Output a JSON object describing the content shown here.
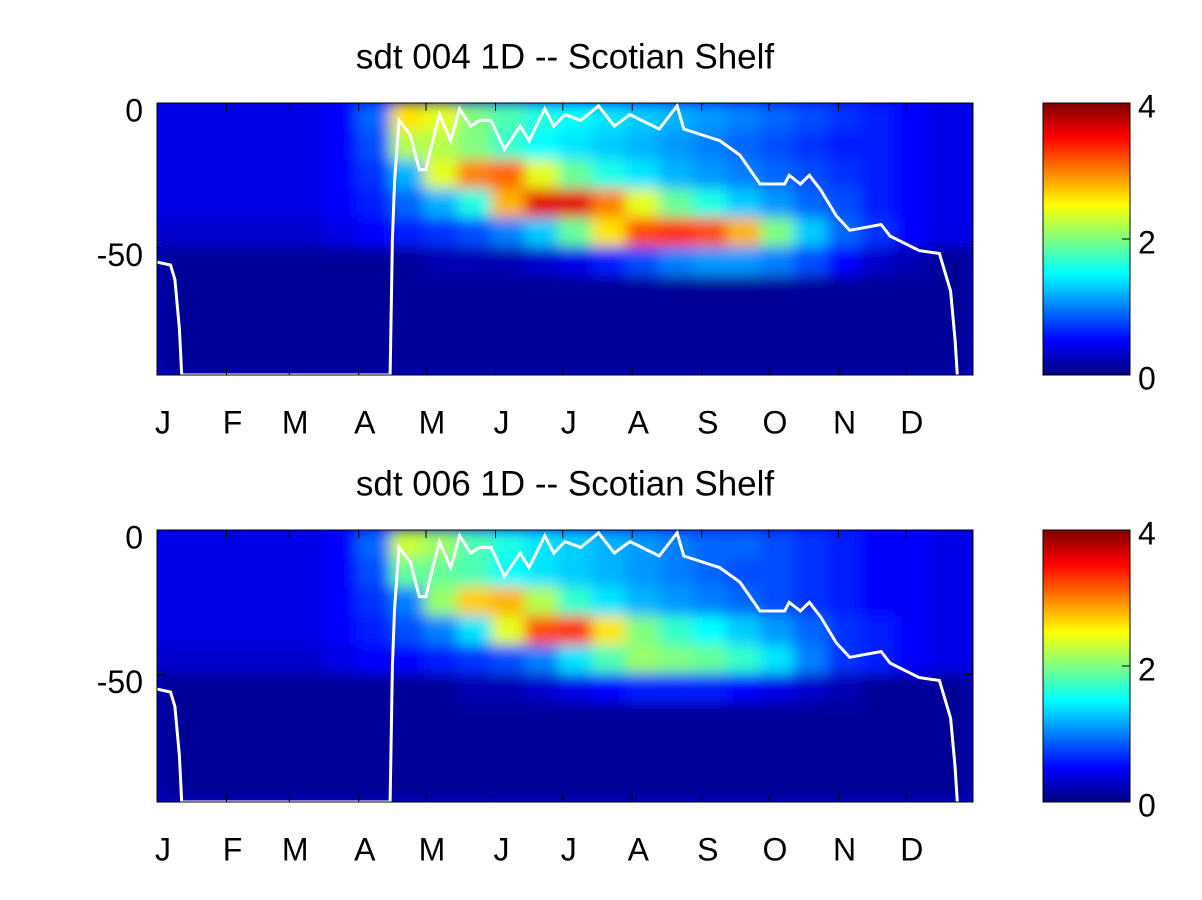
{
  "chart_data": [
    {
      "type": "heatmap",
      "title": "sdt  004 1D   -- Scotian Shelf",
      "colormap": "jet",
      "xlim": [
        1,
        365
      ],
      "ylim": [
        -94,
        0
      ],
      "xticks": [
        {
          "value": 1,
          "label": "J"
        },
        {
          "value": 32,
          "label": "F"
        },
        {
          "value": 60,
          "label": "M"
        },
        {
          "value": 91,
          "label": "A"
        },
        {
          "value": 121,
          "label": "M"
        },
        {
          "value": 152,
          "label": "J"
        },
        {
          "value": 182,
          "label": "J"
        },
        {
          "value": 213,
          "label": "A"
        },
        {
          "value": 244,
          "label": "S"
        },
        {
          "value": 274,
          "label": "O"
        },
        {
          "value": 305,
          "label": "N"
        },
        {
          "value": 335,
          "label": "D"
        }
      ],
      "yticks": [
        0,
        -50
      ],
      "clim": [
        0,
        4
      ],
      "cticks": [
        0,
        2,
        4
      ],
      "x": [
        8,
        23,
        38,
        53,
        68,
        83,
        98,
        113,
        128,
        143,
        158,
        173,
        188,
        203,
        218,
        233,
        248,
        263,
        278,
        293,
        308,
        323,
        338,
        353
      ],
      "y": [
        -5,
        -15,
        -25,
        -35,
        -45,
        -55,
        -65,
        -75,
        -85
      ],
      "z": [
        [
          0.4,
          0.4,
          0.4,
          0.4,
          0.4,
          0.5,
          0.9,
          2.6,
          2.4,
          2.0,
          1.8,
          1.6,
          1.5,
          1.4,
          1.3,
          1.2,
          1.1,
          1.0,
          0.9,
          0.8,
          0.7,
          0.6,
          0.5,
          0.4
        ],
        [
          0.4,
          0.4,
          0.4,
          0.4,
          0.4,
          0.5,
          0.8,
          2.2,
          2.2,
          2.0,
          1.7,
          1.5,
          1.4,
          1.3,
          1.2,
          1.1,
          1.0,
          0.9,
          0.8,
          0.7,
          0.6,
          0.6,
          0.5,
          0.4
        ],
        [
          0.4,
          0.4,
          0.4,
          0.4,
          0.4,
          0.5,
          0.7,
          1.2,
          2.4,
          3.0,
          3.1,
          2.4,
          1.9,
          1.6,
          1.4,
          1.2,
          1.1,
          1.0,
          0.9,
          0.8,
          0.7,
          0.6,
          0.5,
          0.4
        ],
        [
          0.4,
          0.4,
          0.4,
          0.4,
          0.4,
          0.5,
          0.6,
          0.9,
          1.2,
          1.6,
          2.8,
          3.6,
          3.6,
          3.0,
          2.4,
          1.9,
          1.6,
          1.3,
          1.1,
          0.9,
          0.8,
          0.6,
          0.5,
          0.4
        ],
        [
          0.3,
          0.3,
          0.3,
          0.3,
          0.3,
          0.4,
          0.5,
          0.6,
          0.7,
          0.8,
          1.0,
          1.3,
          1.9,
          2.6,
          3.2,
          3.3,
          3.2,
          2.8,
          2.0,
          1.3,
          0.9,
          0.7,
          0.5,
          0.4
        ],
        [
          0.1,
          0.1,
          0.1,
          0.1,
          0.1,
          0.1,
          0.1,
          0.1,
          0.2,
          0.2,
          0.2,
          0.3,
          0.4,
          0.6,
          0.8,
          1.0,
          1.1,
          1.1,
          1.0,
          0.8,
          0.5,
          0.3,
          0.2,
          0.1
        ],
        [
          0.1,
          0.1,
          0.1,
          0.1,
          0.1,
          0.1,
          0.1,
          0.1,
          0.1,
          0.1,
          0.1,
          0.1,
          0.1,
          0.1,
          0.1,
          0.1,
          0.1,
          0.1,
          0.1,
          0.1,
          0.1,
          0.1,
          0.1,
          0.1
        ],
        [
          0.1,
          0.1,
          0.1,
          0.1,
          0.1,
          0.1,
          0.1,
          0.1,
          0.1,
          0.1,
          0.1,
          0.1,
          0.1,
          0.1,
          0.1,
          0.1,
          0.1,
          0.1,
          0.1,
          0.1,
          0.1,
          0.1,
          0.1,
          0.1
        ],
        [
          0.1,
          0.1,
          0.1,
          0.1,
          0.1,
          0.1,
          0.1,
          0.1,
          0.1,
          0.1,
          0.1,
          0.1,
          0.1,
          0.1,
          0.1,
          0.1,
          0.1,
          0.1,
          0.1,
          0.1,
          0.1,
          0.1,
          0.1,
          0.1
        ]
      ],
      "line": {
        "color": "#ffffff",
        "x": [
          1,
          7,
          9,
          11,
          12,
          105,
          106,
          107,
          109,
          111,
          114,
          118,
          121,
          124,
          127,
          132,
          136,
          141,
          145,
          150,
          156,
          163,
          167,
          174,
          178,
          183,
          190,
          198,
          205,
          212,
          225,
          233,
          236,
          252,
          261,
          270,
          281,
          283,
          288,
          292,
          297,
          304,
          310,
          324,
          328,
          341,
          350,
          355,
          357,
          358
        ],
        "values": [
          -55,
          -56,
          -61,
          -78,
          -94,
          -94,
          -47,
          -27,
          -6,
          -8,
          -11,
          -23,
          -23,
          -13,
          -4,
          -13,
          -2,
          -8,
          -6,
          -6,
          -16,
          -8,
          -13,
          -2,
          -8,
          -4,
          -6,
          -1,
          -8,
          -4,
          -9,
          -1,
          -9,
          -13,
          -18,
          -28,
          -28,
          -25,
          -28,
          -25,
          -30,
          -39,
          -44,
          -42,
          -46,
          -51,
          -52,
          -65,
          -82,
          -94
        ]
      }
    },
    {
      "type": "heatmap",
      "title": "sdt  006 1D   -- Scotian Shelf",
      "colormap": "jet",
      "xlim": [
        1,
        365
      ],
      "ylim": [
        -94,
        0
      ],
      "xticks": [
        {
          "value": 1,
          "label": "J"
        },
        {
          "value": 32,
          "label": "F"
        },
        {
          "value": 60,
          "label": "M"
        },
        {
          "value": 91,
          "label": "A"
        },
        {
          "value": 121,
          "label": "M"
        },
        {
          "value": 152,
          "label": "J"
        },
        {
          "value": 182,
          "label": "J"
        },
        {
          "value": 213,
          "label": "A"
        },
        {
          "value": 244,
          "label": "S"
        },
        {
          "value": 274,
          "label": "O"
        },
        {
          "value": 305,
          "label": "N"
        },
        {
          "value": 335,
          "label": "D"
        }
      ],
      "yticks": [
        0,
        -50
      ],
      "clim": [
        0,
        4
      ],
      "cticks": [
        0,
        2,
        4
      ],
      "x": [
        8,
        23,
        38,
        53,
        68,
        83,
        98,
        113,
        128,
        143,
        158,
        173,
        188,
        203,
        218,
        233,
        248,
        263,
        278,
        293,
        308,
        323,
        338,
        353
      ],
      "y": [
        -5,
        -15,
        -25,
        -35,
        -45,
        -55,
        -65,
        -75,
        -85
      ],
      "z": [
        [
          0.4,
          0.4,
          0.4,
          0.4,
          0.4,
          0.5,
          0.9,
          2.3,
          2.1,
          1.8,
          1.6,
          1.4,
          1.3,
          1.2,
          1.1,
          1.0,
          0.9,
          0.9,
          0.8,
          0.7,
          0.6,
          0.5,
          0.5,
          0.4
        ],
        [
          0.4,
          0.4,
          0.4,
          0.4,
          0.4,
          0.5,
          0.8,
          1.9,
          1.9,
          1.8,
          1.5,
          1.4,
          1.3,
          1.2,
          1.1,
          1.0,
          0.9,
          0.8,
          0.8,
          0.7,
          0.6,
          0.5,
          0.5,
          0.4
        ],
        [
          0.4,
          0.4,
          0.4,
          0.4,
          0.4,
          0.5,
          0.7,
          1.0,
          2.1,
          2.7,
          2.8,
          2.2,
          1.7,
          1.4,
          1.2,
          1.1,
          1.0,
          0.9,
          0.8,
          0.7,
          0.6,
          0.5,
          0.5,
          0.4
        ],
        [
          0.4,
          0.4,
          0.4,
          0.4,
          0.4,
          0.5,
          0.6,
          0.8,
          1.0,
          1.4,
          2.4,
          3.2,
          3.3,
          2.6,
          2.0,
          1.7,
          1.5,
          1.3,
          1.1,
          0.9,
          0.7,
          0.6,
          0.5,
          0.4
        ],
        [
          0.3,
          0.3,
          0.3,
          0.3,
          0.3,
          0.4,
          0.5,
          0.5,
          0.6,
          0.7,
          0.8,
          1.0,
          1.4,
          1.8,
          2.1,
          2.0,
          1.9,
          1.7,
          1.4,
          1.0,
          0.7,
          0.6,
          0.5,
          0.4
        ],
        [
          0.1,
          0.1,
          0.1,
          0.1,
          0.1,
          0.1,
          0.1,
          0.1,
          0.1,
          0.2,
          0.2,
          0.3,
          0.4,
          0.5,
          0.6,
          0.6,
          0.6,
          0.5,
          0.4,
          0.3,
          0.2,
          0.1,
          0.1,
          0.1
        ],
        [
          0.1,
          0.1,
          0.1,
          0.1,
          0.1,
          0.1,
          0.1,
          0.1,
          0.1,
          0.1,
          0.1,
          0.1,
          0.1,
          0.1,
          0.1,
          0.1,
          0.1,
          0.1,
          0.1,
          0.1,
          0.1,
          0.1,
          0.1,
          0.1
        ],
        [
          0.1,
          0.1,
          0.1,
          0.1,
          0.1,
          0.1,
          0.1,
          0.1,
          0.1,
          0.1,
          0.1,
          0.1,
          0.1,
          0.1,
          0.1,
          0.1,
          0.1,
          0.1,
          0.1,
          0.1,
          0.1,
          0.1,
          0.1,
          0.1
        ],
        [
          0.1,
          0.1,
          0.1,
          0.1,
          0.1,
          0.1,
          0.1,
          0.1,
          0.1,
          0.1,
          0.1,
          0.1,
          0.1,
          0.1,
          0.1,
          0.1,
          0.1,
          0.1,
          0.1,
          0.1,
          0.1,
          0.1,
          0.1,
          0.1
        ]
      ],
      "line": {
        "color": "#ffffff",
        "x": [
          1,
          7,
          9,
          11,
          12,
          105,
          106,
          107,
          109,
          111,
          114,
          118,
          121,
          124,
          127,
          132,
          136,
          141,
          145,
          150,
          156,
          163,
          167,
          174,
          178,
          183,
          190,
          198,
          205,
          212,
          225,
          233,
          236,
          252,
          261,
          270,
          281,
          283,
          288,
          292,
          297,
          304,
          310,
          324,
          328,
          341,
          350,
          355,
          357,
          358
        ],
        "values": [
          -55,
          -56,
          -61,
          -78,
          -94,
          -94,
          -47,
          -27,
          -6,
          -8,
          -11,
          -23,
          -23,
          -13,
          -4,
          -13,
          -2,
          -8,
          -6,
          -6,
          -16,
          -8,
          -13,
          -2,
          -8,
          -4,
          -6,
          -1,
          -8,
          -4,
          -9,
          -1,
          -9,
          -13,
          -18,
          -28,
          -28,
          -25,
          -28,
          -25,
          -30,
          -39,
          -44,
          -42,
          -46,
          -51,
          -52,
          -65,
          -82,
          -94
        ]
      }
    }
  ]
}
